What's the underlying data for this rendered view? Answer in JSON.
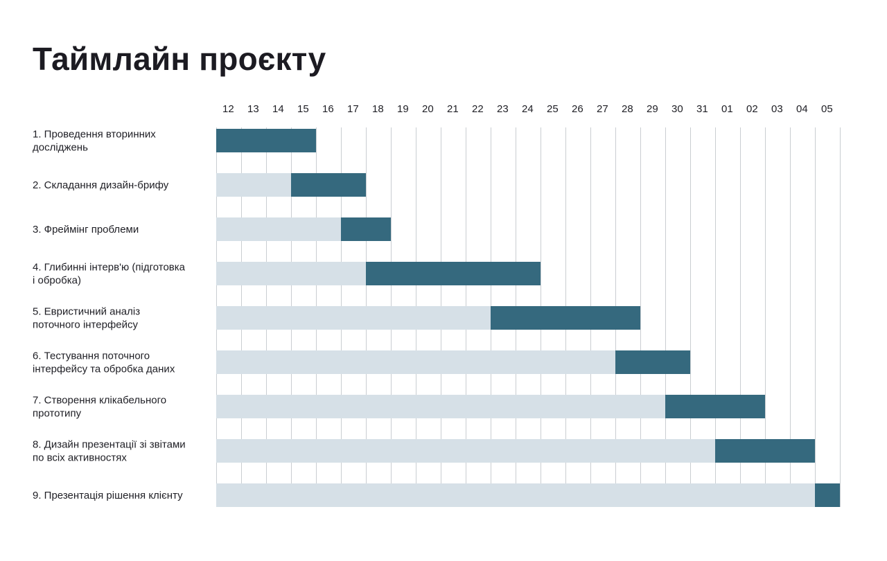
{
  "title": "Таймлайн проєкту",
  "colors": {
    "background": "#ffffff",
    "bar": "#35697e",
    "track": "#d6e0e7",
    "grid": "#c9cdd1",
    "text": "#1e1e24"
  },
  "chart_data": {
    "type": "gantt",
    "title": "Таймлайн проєкту",
    "x_ticks": [
      "12",
      "13",
      "14",
      "15",
      "16",
      "17",
      "18",
      "19",
      "20",
      "21",
      "22",
      "23",
      "24",
      "25",
      "26",
      "27",
      "28",
      "29",
      "30",
      "31",
      "01",
      "02",
      "03",
      "04",
      "05"
    ],
    "grid": true,
    "tasks": [
      {
        "label_lines": [
          "1. Проведення вторинних",
          "досліджень"
        ],
        "start": 0,
        "end": 4
      },
      {
        "label_lines": [
          "2. Складання дизайн-брифу"
        ],
        "start": 3,
        "end": 6
      },
      {
        "label_lines": [
          "3. Фреймінг проблеми"
        ],
        "start": 5,
        "end": 7
      },
      {
        "label_lines": [
          "4. Глибинні інтерв'ю (підготовка",
          "і обробка)"
        ],
        "start": 6,
        "end": 13
      },
      {
        "label_lines": [
          "5. Евристичний аналіз",
          "поточного інтерфейсу"
        ],
        "start": 11,
        "end": 17
      },
      {
        "label_lines": [
          "6. Тестування поточного",
          "інтерфейсу та обробка даних"
        ],
        "start": 16,
        "end": 19
      },
      {
        "label_lines": [
          "7. Створення клікабельного",
          "прототипу"
        ],
        "start": 18,
        "end": 22
      },
      {
        "label_lines": [
          "8. Дизайн презентації зі звітами",
          "по всіх активностях"
        ],
        "start": 20,
        "end": 24
      },
      {
        "label_lines": [
          "9. Презентація рішення клієнту"
        ],
        "start": 24,
        "end": 25
      }
    ]
  }
}
